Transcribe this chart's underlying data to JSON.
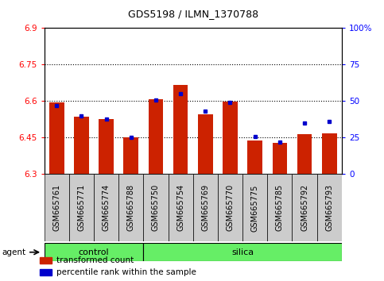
{
  "title": "GDS5198 / ILMN_1370788",
  "samples": [
    "GSM665761",
    "GSM665771",
    "GSM665774",
    "GSM665788",
    "GSM665750",
    "GSM665754",
    "GSM665769",
    "GSM665770",
    "GSM665775",
    "GSM665785",
    "GSM665792",
    "GSM665793"
  ],
  "transformed_count": [
    6.595,
    6.535,
    6.525,
    6.452,
    6.608,
    6.668,
    6.545,
    6.598,
    6.44,
    6.43,
    6.465,
    6.468
  ],
  "percentile_rank": [
    47,
    40,
    38,
    25,
    51,
    55,
    43,
    49,
    26,
    22,
    35,
    36
  ],
  "ylim_left": [
    6.3,
    6.9
  ],
  "ylim_right": [
    0,
    100
  ],
  "yticks_left": [
    6.3,
    6.45,
    6.6,
    6.75,
    6.9
  ],
  "ytick_labels_left": [
    "6.3",
    "6.45",
    "6.6",
    "6.75",
    "6.9"
  ],
  "yticks_right": [
    0,
    25,
    50,
    75,
    100
  ],
  "ytick_labels_right": [
    "0",
    "25",
    "50",
    "75",
    "100%"
  ],
  "hlines": [
    6.45,
    6.6,
    6.75
  ],
  "bar_color": "#CC2200",
  "dot_color": "#0000CC",
  "bar_width": 0.6,
  "control_label": "control",
  "silica_label": "silica",
  "agent_label": "agent",
  "group_bg_color": "#66EE66",
  "legend_red_label": "transformed count",
  "legend_blue_label": "percentile rank within the sample",
  "control_count": 4,
  "total_count": 12,
  "xaxis_box_color": "#cccccc",
  "title_fontsize": 9,
  "tick_fontsize": 7.5,
  "label_fontsize": 7,
  "group_fontsize": 8
}
